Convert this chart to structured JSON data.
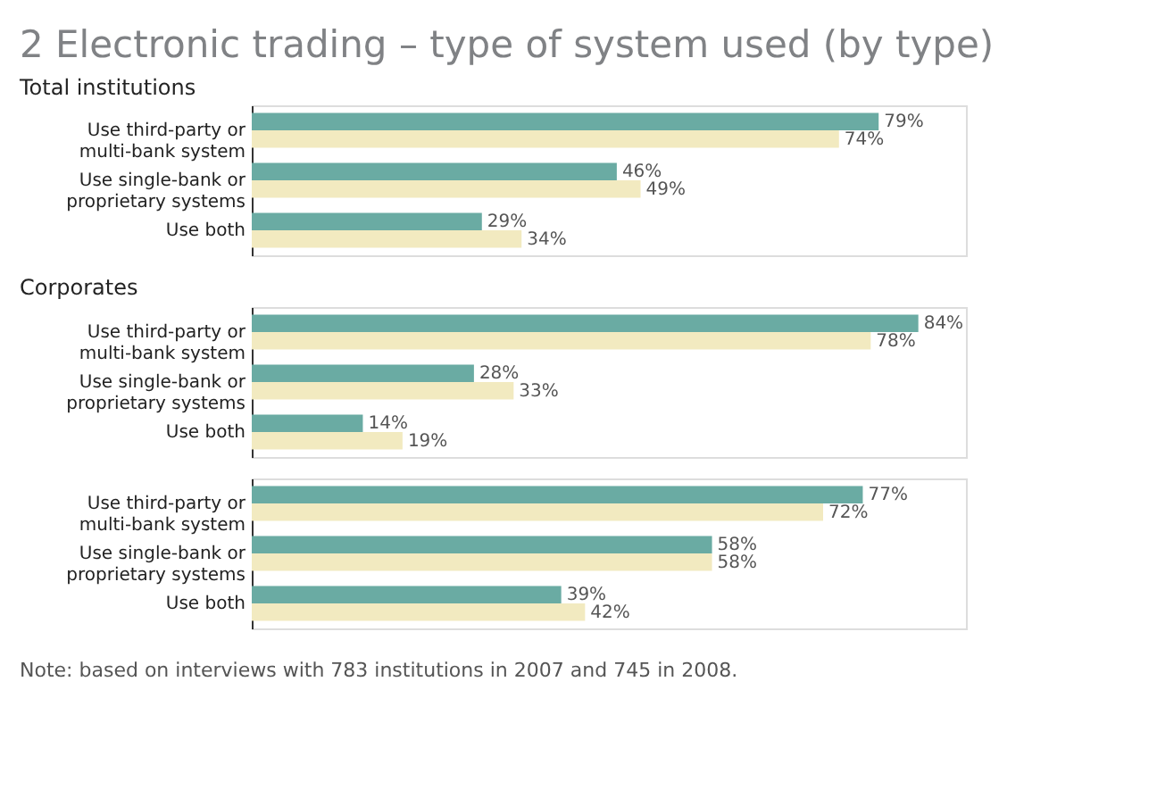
{
  "chart_data": [
    {
      "type": "bar",
      "orientation": "horizontal",
      "title": "2 Electronic trading – type of system used (by type)",
      "subtitle": "Total institutions",
      "categories": [
        "Use third-party or multi-bank system",
        "Use single-bank or proprietary systems",
        "Use both"
      ],
      "series": [
        {
          "color": "#6aaba3",
          "values": [
            79,
            46,
            29
          ],
          "value_labels": [
            "79%",
            "46%",
            "29%"
          ]
        },
        {
          "color": "#f2eac0",
          "values": [
            74,
            49,
            34
          ],
          "value_labels": [
            "74%",
            "49%",
            "34%"
          ]
        }
      ]
    },
    {
      "type": "bar",
      "orientation": "horizontal",
      "subtitle": "Corporates",
      "categories": [
        "Use third-party or multi-bank system",
        "Use single-bank or proprietary systems",
        "Use both"
      ],
      "series": [
        {
          "color": "#6aaba3",
          "values": [
            84,
            28,
            14
          ],
          "value_labels": [
            "84%",
            "28%",
            "14%"
          ]
        },
        {
          "color": "#f2eac0",
          "values": [
            78,
            33,
            19
          ],
          "value_labels": [
            "78%",
            "33%",
            "19%"
          ]
        }
      ]
    },
    {
      "type": "bar",
      "orientation": "horizontal",
      "categories": [
        "Use third-party or multi-bank system",
        "Use single-bank or proprietary systems",
        "Use both"
      ],
      "annotations": [
        "Note: based on interviews with 783 institutions in 2007 and 745 in 2008."
      ],
      "series": [
        {
          "color": "#6aaba3",
          "values": [
            77,
            58,
            39
          ],
          "value_labels": [
            "77%",
            "58%",
            "39%"
          ]
        },
        {
          "color": "#f2eac0",
          "values": [
            72,
            58,
            42
          ],
          "value_labels": [
            "72%",
            "58%",
            "42%"
          ]
        }
      ]
    }
  ]
}
